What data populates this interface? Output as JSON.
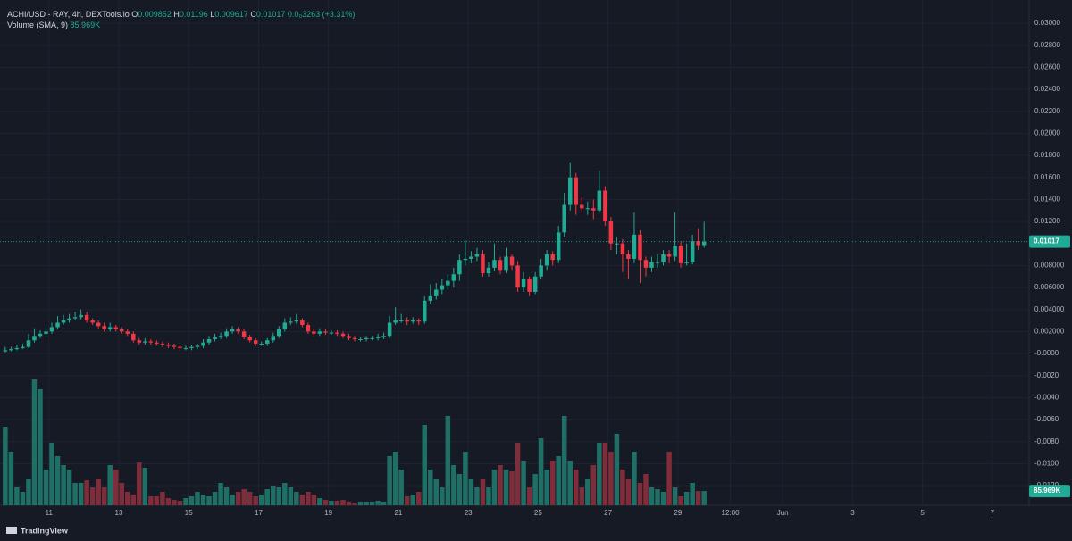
{
  "header": {
    "symbol": "ACHI/USD",
    "info": "- RAY, 4h, DEXTools.io",
    "o_label": "O",
    "h_label": "H",
    "l_label": "L",
    "c_label": "C",
    "change": "0.0₀3263 (+3.31%)",
    "volume_title": "Volume (SMA, 9)",
    "volume_value": "85.969K",
    "brand": "TradingView"
  },
  "chart_data": {
    "type": "candlestick",
    "up_color": "#22ab94",
    "down_color": "#f23645",
    "volume_up_color": "#1f6f66",
    "volume_down_color": "#7f2d3a",
    "grid": true,
    "xlim": [
      9.6,
      39.0
    ],
    "xticks": [
      11,
      13,
      15,
      17,
      19,
      21,
      23,
      25,
      27,
      29,
      {
        "value": 30.5,
        "label": "12:00"
      },
      {
        "value": 32,
        "label": "Jun"
      },
      {
        "value": 34,
        "label": "3"
      },
      {
        "value": 36,
        "label": "5"
      },
      {
        "value": 38,
        "label": "7"
      }
    ],
    "ylim": [
      -0.01378,
      0.03211
    ],
    "yticks": [
      {
        "value": 0.03,
        "label": "0.03000"
      },
      {
        "value": 0.028,
        "label": "0.02800"
      },
      {
        "value": 0.026,
        "label": "0.02600"
      },
      {
        "value": 0.024,
        "label": "0.02400"
      },
      {
        "value": 0.022,
        "label": "0.02200"
      },
      {
        "value": 0.02,
        "label": "0.02000"
      },
      {
        "value": 0.018,
        "label": "0.01800"
      },
      {
        "value": 0.016,
        "label": "0.01600"
      },
      {
        "value": 0.014,
        "label": "0.01400"
      },
      {
        "value": 0.012,
        "label": "0.01200"
      },
      {
        "value": 0.008,
        "label": "0.008000"
      },
      {
        "value": 0.006,
        "label": "0.006000"
      },
      {
        "value": 0.004,
        "label": "0.004000"
      },
      {
        "value": 0.002,
        "label": "0.002000"
      },
      {
        "value": 0,
        "label": "-0.0000"
      },
      {
        "value": -0.002,
        "label": "-0.0020"
      },
      {
        "value": -0.004,
        "label": "-0.0040"
      },
      {
        "value": -0.006,
        "label": "-0.0060"
      },
      {
        "value": -0.008,
        "label": "-0.0080"
      },
      {
        "value": -0.01,
        "label": "-0.0100"
      },
      {
        "value": -0.012,
        "label": "-0.0120"
      }
    ],
    "x": [
      9.75,
      9.917,
      10.083,
      10.25,
      10.417,
      10.583,
      10.75,
      10.917,
      11.083,
      11.25,
      11.417,
      11.583,
      11.75,
      11.917,
      12.083,
      12.25,
      12.417,
      12.583,
      12.75,
      12.917,
      13.083,
      13.25,
      13.417,
      13.583,
      13.75,
      13.917,
      14.083,
      14.25,
      14.417,
      14.583,
      14.75,
      14.917,
      15.083,
      15.25,
      15.417,
      15.583,
      15.75,
      15.917,
      16.083,
      16.25,
      16.417,
      16.583,
      16.75,
      16.917,
      17.083,
      17.25,
      17.417,
      17.583,
      17.75,
      17.917,
      18.083,
      18.25,
      18.417,
      18.583,
      18.75,
      18.917,
      19.083,
      19.25,
      19.417,
      19.583,
      19.75,
      19.917,
      20.083,
      20.25,
      20.417,
      20.583,
      20.75,
      20.917,
      21.083,
      21.25,
      21.417,
      21.583,
      21.75,
      21.917,
      22.083,
      22.25,
      22.417,
      22.583,
      22.75,
      22.917,
      23.083,
      23.25,
      23.417,
      23.583,
      23.75,
      23.917,
      24.083,
      24.25,
      24.417,
      24.583,
      24.75,
      24.917,
      25.083,
      25.25,
      25.417,
      25.583,
      25.75,
      25.917,
      26.083,
      26.25,
      26.417,
      26.583,
      26.75,
      26.917,
      27.083,
      27.25,
      27.417,
      27.583,
      27.75,
      27.917,
      28.083,
      28.25,
      28.417,
      28.583,
      28.75,
      28.917,
      29.083,
      29.25,
      29.417,
      29.583,
      29.75
    ],
    "open": [
      0.0002,
      0.0003,
      0.0004,
      0.0005,
      0.0006,
      0.0012,
      0.0016,
      0.0018,
      0.002,
      0.0024,
      0.0028,
      0.003,
      0.0032,
      0.0033,
      0.0035,
      0.003,
      0.0028,
      0.0025,
      0.0022,
      0.0024,
      0.0022,
      0.002,
      0.0018,
      0.0012,
      0.001,
      0.0011,
      0.001,
      0.0009,
      0.0008,
      0.0007,
      0.0006,
      0.0005,
      0.0005,
      0.0006,
      0.0007,
      0.001,
      0.0013,
      0.0015,
      0.0016,
      0.002,
      0.0022,
      0.002,
      0.0015,
      0.0012,
      0.0009,
      0.0009,
      0.0012,
      0.0016,
      0.0022,
      0.0028,
      0.0029,
      0.003,
      0.0026,
      0.002,
      0.0018,
      0.002,
      0.0019,
      0.0019,
      0.0018,
      0.0016,
      0.0014,
      0.0013,
      0.0013,
      0.0014,
      0.0014,
      0.0015,
      0.0016,
      0.0028,
      0.003,
      0.003,
      0.0029,
      0.003,
      0.0029,
      0.0048,
      0.0052,
      0.0058,
      0.0062,
      0.0066,
      0.0072,
      0.0085,
      0.0086,
      0.0088,
      0.009,
      0.0073,
      0.0078,
      0.0085,
      0.0076,
      0.0088,
      0.008,
      0.006,
      0.0068,
      0.0056,
      0.007,
      0.008,
      0.009,
      0.0085,
      0.011,
      0.0135,
      0.016,
      0.0135,
      0.0132,
      0.0132,
      0.013,
      0.0148,
      0.012,
      0.01,
      0.01,
      0.009,
      0.0086,
      0.0108,
      0.0085,
      0.0078,
      0.0083,
      0.0083,
      0.009,
      0.0088,
      0.0098,
      0.0082,
      0.0083,
      0.0102,
      0.009852
    ],
    "high": [
      0.0006,
      0.0006,
      0.0008,
      0.0009,
      0.0018,
      0.0023,
      0.0021,
      0.0024,
      0.0028,
      0.0034,
      0.0035,
      0.0036,
      0.0038,
      0.004,
      0.0038,
      0.0032,
      0.003,
      0.0028,
      0.0028,
      0.0026,
      0.0024,
      0.0022,
      0.002,
      0.0014,
      0.0014,
      0.0013,
      0.0012,
      0.0011,
      0.001,
      0.0009,
      0.0008,
      0.0007,
      0.0008,
      0.0009,
      0.0013,
      0.0016,
      0.0018,
      0.0019,
      0.0023,
      0.0025,
      0.0024,
      0.0022,
      0.0017,
      0.0014,
      0.0011,
      0.0014,
      0.0019,
      0.0025,
      0.0032,
      0.0033,
      0.0036,
      0.0032,
      0.0028,
      0.0022,
      0.0023,
      0.0022,
      0.0021,
      0.0021,
      0.002,
      0.0018,
      0.0016,
      0.0015,
      0.0016,
      0.0016,
      0.0018,
      0.0019,
      0.0034,
      0.0042,
      0.0036,
      0.0033,
      0.0033,
      0.0032,
      0.0052,
      0.0063,
      0.0064,
      0.0068,
      0.0072,
      0.0078,
      0.009,
      0.0103,
      0.0093,
      0.0096,
      0.0094,
      0.0083,
      0.01,
      0.0088,
      0.0096,
      0.009,
      0.0084,
      0.0074,
      0.007,
      0.0074,
      0.0086,
      0.0094,
      0.0093,
      0.0116,
      0.0146,
      0.0173,
      0.0164,
      0.0142,
      0.0138,
      0.014,
      0.0166,
      0.0152,
      0.0124,
      0.0106,
      0.0104,
      0.0094,
      0.0128,
      0.0112,
      0.0088,
      0.0088,
      0.009,
      0.0094,
      0.0094,
      0.0128,
      0.0102,
      0.01,
      0.0108,
      0.0114,
      0.01196
    ],
    "low": [
      0.0001,
      0.0002,
      0.0003,
      0.0004,
      0.0005,
      0.001,
      0.0014,
      0.0016,
      0.0018,
      0.0022,
      0.0026,
      0.0028,
      0.003,
      0.0031,
      0.0028,
      0.0026,
      0.0023,
      0.002,
      0.002,
      0.002,
      0.0018,
      0.0016,
      0.001,
      0.0008,
      0.0008,
      0.0008,
      0.0007,
      0.0006,
      0.0005,
      0.0004,
      0.0003,
      0.0003,
      0.0003,
      0.0004,
      0.0005,
      0.0008,
      0.0011,
      0.0013,
      0.0014,
      0.0018,
      0.0018,
      0.0013,
      0.001,
      0.0007,
      0.0007,
      0.0007,
      0.001,
      0.0014,
      0.002,
      0.0026,
      0.0027,
      0.0024,
      0.0018,
      0.0016,
      0.0016,
      0.0017,
      0.0017,
      0.0016,
      0.0014,
      0.0012,
      0.0011,
      0.0011,
      0.0011,
      0.0012,
      0.0012,
      0.0013,
      0.0014,
      0.0026,
      0.0028,
      0.0026,
      0.0027,
      0.0026,
      0.0027,
      0.0045,
      0.0049,
      0.0054,
      0.0058,
      0.006,
      0.0066,
      0.008,
      0.0082,
      0.0084,
      0.007,
      0.007,
      0.0075,
      0.0072,
      0.0073,
      0.0076,
      0.0056,
      0.0056,
      0.0052,
      0.0054,
      0.0068,
      0.0076,
      0.008,
      0.0082,
      0.0106,
      0.013,
      0.0126,
      0.0128,
      0.0126,
      0.0122,
      0.0128,
      0.0116,
      0.0094,
      0.009,
      0.0074,
      0.0068,
      0.0082,
      0.0064,
      0.007,
      0.0074,
      0.0078,
      0.008,
      0.0082,
      0.0084,
      0.0078,
      0.008,
      0.0081,
      0.0094,
      0.009617
    ],
    "close": [
      0.0003,
      0.0004,
      0.0005,
      0.0006,
      0.0012,
      0.0016,
      0.0018,
      0.002,
      0.0024,
      0.0028,
      0.003,
      0.0032,
      0.0033,
      0.0035,
      0.003,
      0.0028,
      0.0025,
      0.0022,
      0.0024,
      0.0022,
      0.002,
      0.0018,
      0.0012,
      0.001,
      0.0011,
      0.001,
      0.0009,
      0.0008,
      0.0007,
      0.0006,
      0.0005,
      0.0005,
      0.0006,
      0.0007,
      0.001,
      0.0013,
      0.0015,
      0.0016,
      0.002,
      0.0022,
      0.002,
      0.0015,
      0.0012,
      0.0009,
      0.0009,
      0.0012,
      0.0016,
      0.0022,
      0.0028,
      0.0029,
      0.003,
      0.0026,
      0.002,
      0.0018,
      0.002,
      0.0019,
      0.0019,
      0.0018,
      0.0016,
      0.0014,
      0.0013,
      0.0013,
      0.0014,
      0.0014,
      0.0015,
      0.0016,
      0.0028,
      0.003,
      0.003,
      0.0029,
      0.003,
      0.0029,
      0.0048,
      0.0052,
      0.0058,
      0.0062,
      0.0066,
      0.0072,
      0.0085,
      0.0086,
      0.0088,
      0.009,
      0.0073,
      0.0078,
      0.0085,
      0.0076,
      0.0088,
      0.008,
      0.006,
      0.0068,
      0.0056,
      0.007,
      0.008,
      0.009,
      0.0085,
      0.011,
      0.0135,
      0.016,
      0.0135,
      0.0132,
      0.0132,
      0.013,
      0.0148,
      0.012,
      0.01,
      0.01,
      0.009,
      0.0086,
      0.0108,
      0.0085,
      0.0078,
      0.0083,
      0.0083,
      0.009,
      0.0088,
      0.0098,
      0.0082,
      0.0083,
      0.0102,
      0.009852,
      0.01017
    ],
    "volume": [
      475000,
      324000,
      108000,
      81000,
      162000,
      761000,
      702000,
      216000,
      378000,
      297000,
      243000,
      216000,
      135000,
      135000,
      151000,
      108000,
      162000,
      108000,
      243000,
      216000,
      135000,
      81000,
      65000,
      259000,
      227000,
      54000,
      54000,
      81000,
      43000,
      32000,
      27000,
      43000,
      54000,
      81000,
      65000,
      54000,
      81000,
      135000,
      108000,
      65000,
      81000,
      97000,
      81000,
      54000,
      65000,
      97000,
      119000,
      108000,
      135000,
      108000,
      81000,
      65000,
      81000,
      65000,
      43000,
      32000,
      27000,
      27000,
      32000,
      22000,
      16000,
      22000,
      22000,
      22000,
      27000,
      22000,
      297000,
      324000,
      216000,
      54000,
      65000,
      81000,
      486000,
      216000,
      162000,
      108000,
      540000,
      243000,
      189000,
      324000,
      162000,
      108000,
      162000,
      108000,
      216000,
      243000,
      216000,
      205000,
      378000,
      270000,
      108000,
      189000,
      405000,
      216000,
      270000,
      297000,
      540000,
      270000,
      216000,
      108000,
      162000,
      243000,
      378000,
      378000,
      324000,
      432000,
      216000,
      162000,
      324000,
      135000,
      189000,
      108000,
      97000,
      81000,
      324000,
      108000,
      54000,
      81000,
      135000,
      86000,
      85969
    ]
  }
}
